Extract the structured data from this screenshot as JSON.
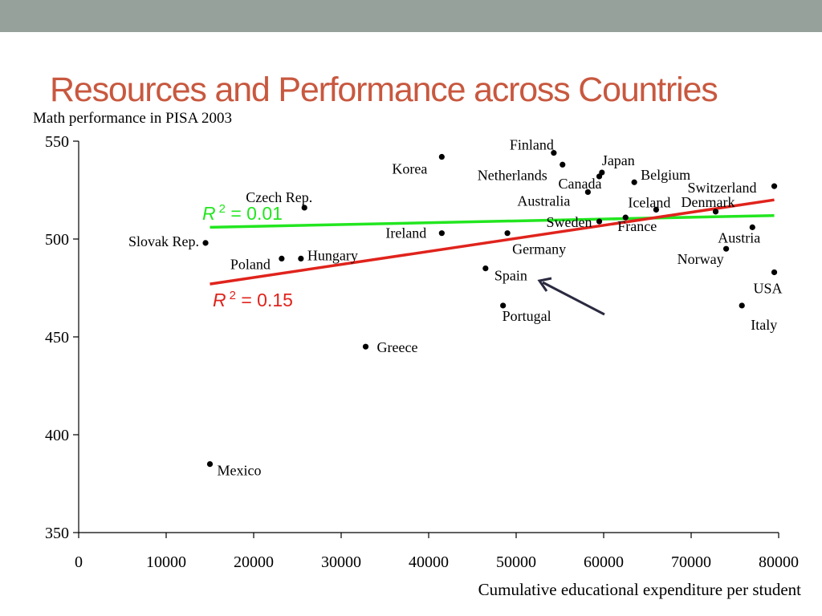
{
  "slide": {
    "title": "Resources and Performance across Countries",
    "colors": {
      "topbar": "#95a19a",
      "title": "#c8583f",
      "green_fit": "#22e61f",
      "red_fit": "#e0231c",
      "arrow": "#2a2a40"
    }
  },
  "chart_data": {
    "type": "scatter",
    "ylabel": "Math performance in PISA 2003",
    "xlabel": "Cumulative educational expenditure per student",
    "xlim": [
      0,
      80000
    ],
    "ylim": [
      350,
      550
    ],
    "xticks": [
      "0",
      "10000",
      "20000",
      "30000",
      "40000",
      "50000",
      "60000",
      "70000",
      "80000"
    ],
    "yticks": [
      "350",
      "400",
      "450",
      "500",
      "550"
    ],
    "grid": false,
    "points": [
      {
        "label": "Mexico",
        "x": 15000,
        "y": 385
      },
      {
        "label": "Slovak Rep.",
        "x": 14500,
        "y": 498
      },
      {
        "label": "Czech Rep.",
        "x": 25800,
        "y": 516
      },
      {
        "label": "Poland",
        "x": 23200,
        "y": 490
      },
      {
        "label": "Hungary",
        "x": 25400,
        "y": 490
      },
      {
        "label": "Greece",
        "x": 32800,
        "y": 445
      },
      {
        "label": "Korea",
        "x": 41500,
        "y": 542
      },
      {
        "label": "Ireland",
        "x": 41500,
        "y": 503
      },
      {
        "label": "Spain",
        "x": 46500,
        "y": 485
      },
      {
        "label": "Portugal",
        "x": 48500,
        "y": 466
      },
      {
        "label": "Germany",
        "x": 49000,
        "y": 503
      },
      {
        "label": "Finland",
        "x": 54300,
        "y": 544
      },
      {
        "label": "Netherlands",
        "x": 55300,
        "y": 538
      },
      {
        "label": "Canada",
        "x": 59500,
        "y": 532
      },
      {
        "label": "Japan",
        "x": 59800,
        "y": 534
      },
      {
        "label": "Australia",
        "x": 58200,
        "y": 524
      },
      {
        "label": "Sweden",
        "x": 59500,
        "y": 509
      },
      {
        "label": "Belgium",
        "x": 63500,
        "y": 529
      },
      {
        "label": "France",
        "x": 62500,
        "y": 511
      },
      {
        "label": "Iceland",
        "x": 66000,
        "y": 515
      },
      {
        "label": "Denmark",
        "x": 72800,
        "y": 514
      },
      {
        "label": "Switzerland",
        "x": 79500,
        "y": 527
      },
      {
        "label": "Austria",
        "x": 77000,
        "y": 506
      },
      {
        "label": "Norway",
        "x": 74000,
        "y": 495
      },
      {
        "label": "USA",
        "x": 79500,
        "y": 483
      },
      {
        "label": "Italy",
        "x": 75800,
        "y": 466
      }
    ],
    "fits": [
      {
        "label_prefix": "R",
        "label_sup": "2",
        "label_suffix": " = 0.01",
        "x1": 15000,
        "y1": 506,
        "x2": 79500,
        "y2": 512
      },
      {
        "label_prefix": "R",
        "label_sup": "2",
        "label_suffix": " = 0.15",
        "x1": 15000,
        "y1": 477,
        "x2": 79500,
        "y2": 520
      }
    ]
  }
}
